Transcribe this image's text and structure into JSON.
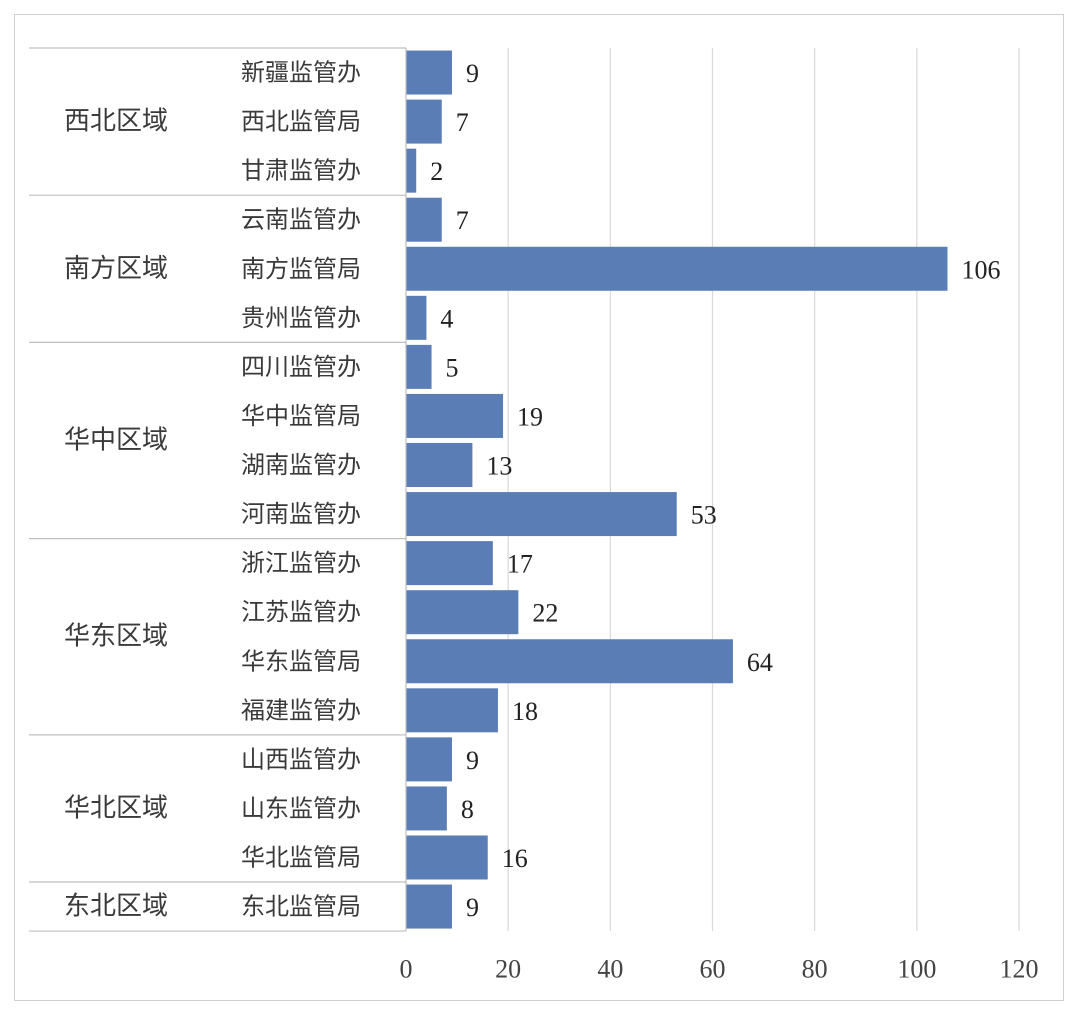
{
  "chart_data": {
    "type": "bar",
    "orientation": "horizontal",
    "title": "",
    "xlabel": "",
    "ylabel": "",
    "xlim": [
      0,
      120
    ],
    "ticks": [
      0,
      20,
      40,
      60,
      80,
      100,
      120
    ],
    "grid": true,
    "bar_color": "#5a7db5",
    "groups": [
      {
        "name": "西北区域",
        "categories": [
          "新疆监管办",
          "西北监管局",
          "甘肃监管办"
        ],
        "values": [
          9,
          7,
          2
        ]
      },
      {
        "name": "南方区域",
        "categories": [
          "云南监管办",
          "南方监管局",
          "贵州监管办"
        ],
        "values": [
          7,
          106,
          4
        ]
      },
      {
        "name": "华中区域",
        "categories": [
          "四川监管办",
          "华中监管局",
          "湖南监管办",
          "河南监管办"
        ],
        "values": [
          5,
          19,
          13,
          53
        ]
      },
      {
        "name": "华东区域",
        "categories": [
          "浙江监管办",
          "江苏监管办",
          "华东监管局",
          "福建监管办"
        ],
        "values": [
          17,
          22,
          64,
          18
        ]
      },
      {
        "name": "华北区域",
        "categories": [
          "山西监管办",
          "山东监管办",
          "华北监管局"
        ],
        "values": [
          9,
          8,
          16
        ]
      },
      {
        "name": "东北区域",
        "categories": [
          "东北监管局"
        ],
        "values": [
          9
        ]
      }
    ]
  }
}
